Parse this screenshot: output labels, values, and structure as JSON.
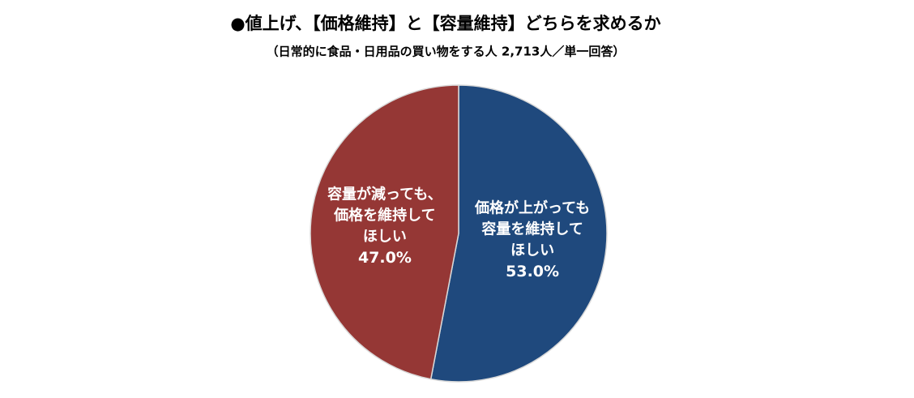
{
  "chart_data": {
    "type": "pie",
    "title": "●値上げ、【価格維持】と【容量維持】どちらを求めるか",
    "subtitle": "（日常的に食品・日用品の買い物をする人 2,713人／単一回答）",
    "categories": [
      "価格が上がっても\n容量を維持して\nほしい",
      "容量が減っても、\n価格を維持して\nほしい"
    ],
    "values": [
      53.0,
      47.0
    ],
    "value_labels": [
      "53.0%",
      "47.0%"
    ],
    "colors": [
      "#1f497d",
      "#953735"
    ]
  }
}
